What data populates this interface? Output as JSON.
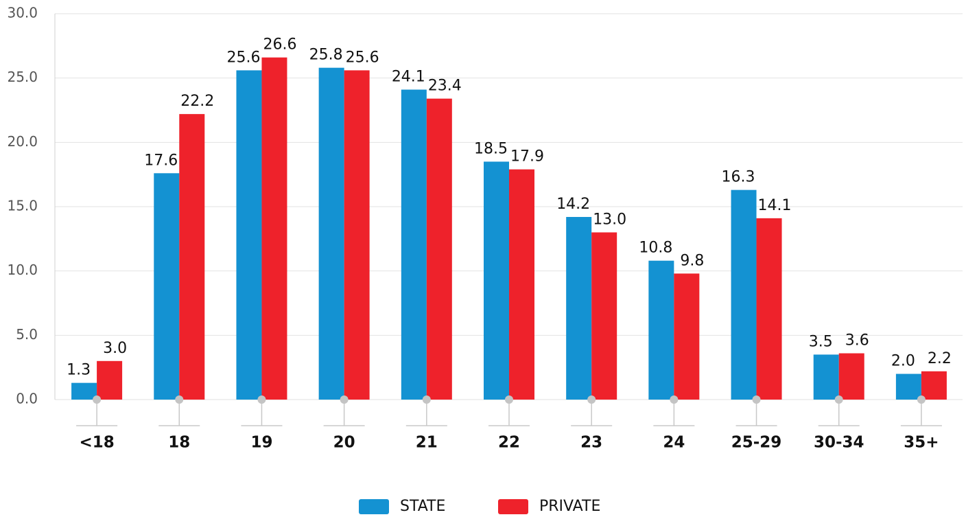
{
  "chart_data": {
    "type": "bar",
    "categories": [
      "<18",
      "18",
      "19",
      "20",
      "21",
      "22",
      "23",
      "24",
      "25-29",
      "30-34",
      "35+"
    ],
    "series": [
      {
        "name": "STATE",
        "color": "#1492d2",
        "values": [
          1.3,
          17.6,
          25.6,
          25.8,
          24.1,
          18.5,
          14.2,
          10.8,
          16.3,
          3.5,
          2
        ],
        "value_labels": [
          "1.3",
          "17.6",
          "25.6",
          "25.8",
          "24.1",
          "18.5",
          "14.2",
          "10.8",
          "16.3",
          "3.5",
          "2.0"
        ]
      },
      {
        "name": "PRIVATE",
        "color": "#ee222b",
        "values": [
          3,
          22.2,
          26.6,
          25.6,
          23.4,
          17.9,
          13,
          9.8,
          14.1,
          3.6,
          2.2
        ],
        "value_labels": [
          "3.0",
          "22.2",
          "26.6",
          "25.6",
          "23.4",
          "17.9",
          "13.0",
          "9.8",
          "14.1",
          "3.6",
          "2.2"
        ]
      }
    ],
    "ylim": [
      0,
      30
    ],
    "yticks": [
      {
        "value": 0,
        "label": "0.0"
      },
      {
        "value": 5,
        "label": "5.0"
      },
      {
        "value": 10,
        "label": "10.0"
      },
      {
        "value": 15,
        "label": "15.0"
      },
      {
        "value": 20,
        "label": "20.0"
      },
      {
        "value": 25,
        "label": "25.0"
      },
      {
        "value": 30,
        "label": "30.0"
      }
    ],
    "grid": true,
    "legend": "bottom"
  }
}
